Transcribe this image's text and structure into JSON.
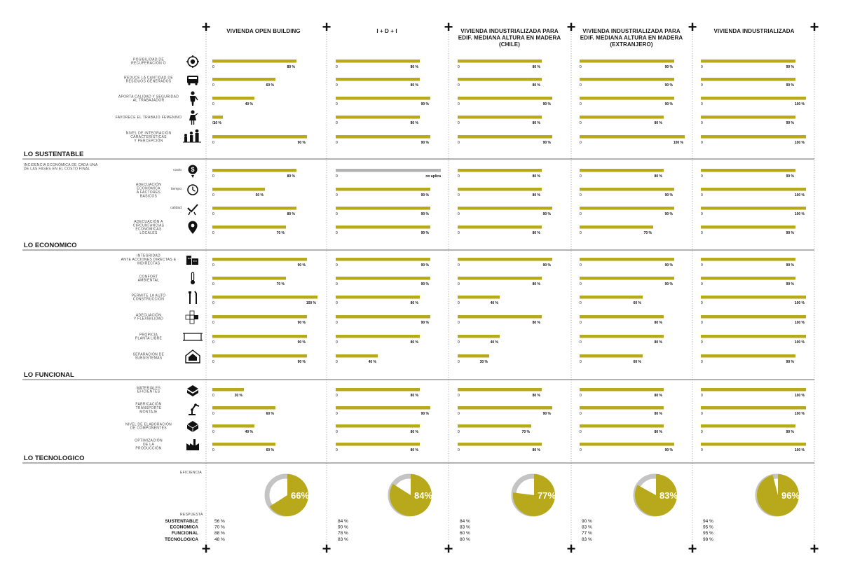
{
  "columns": [
    "VIVIENDA OPEN BUILDING",
    "I + D + I",
    "VIVIENDA INDUSTRIALIZADA PARA\nEDIF. MEDIANA ALTURA EN MADERA\n(CHILE)",
    "VIVIENDA INDUSTRIALIZADA PARA\nEDIF. MEDIANA ALTURA EN MADERA\n(EXTRANJERO)",
    "VIVIENDA INDUSTRIALIZADA"
  ],
  "zero_label": "0",
  "unit": "%",
  "colors": {
    "bar": "#b8a81c",
    "bar_na": "#b3b3b3",
    "donut_rest": "#c4c4c4",
    "rule": "#333333"
  },
  "chart_data": {
    "type": "bar",
    "xlim": [
      0,
      100
    ],
    "sections": [
      {
        "title": "LO SUSTENTABLE",
        "note": "",
        "rows": [
          {
            "label": "POSIBILIDAD DE\nRECUPERACIÓN O",
            "sublabel": "",
            "icon": "target-icon",
            "values": [
              80,
              80,
              80,
              90,
              90
            ]
          },
          {
            "label": "REDUCE LA CANTIDAD DE\nRESIDUOS GENERADOS",
            "sublabel": "",
            "icon": "container-icon",
            "values": [
              60,
              80,
              80,
              90,
              90
            ]
          },
          {
            "label": "APORTA CALIDAD Y SEGURIDAD\nAL TRABAJADOR",
            "sublabel": "",
            "icon": "worker-icon",
            "values": [
              40,
              90,
              90,
              90,
              100
            ]
          },
          {
            "label": "FAVORECE EL TRABAJO FEMENINO",
            "sublabel": "",
            "icon": "woman-worker-icon",
            "values": [
              10,
              80,
              80,
              80,
              90
            ]
          },
          {
            "label": "NIVEL DE INTEGRACIÓN\nCARACTERÍSTICAS\nY PERCEPCIÓN",
            "sublabel": "",
            "icon": "family-icon",
            "values": [
              90,
              90,
              90,
              100,
              100
            ]
          }
        ]
      },
      {
        "title": "LO ECONOMICO",
        "note": "INCIDENCIA ECONÓMICA DE CADA UNA\nDE LAS FASES EN EL COSTO FINAL",
        "group_label": "ADECUACIÓN\nECONÓMICA\nA FACTORES\nBÁSICOS",
        "rows": [
          {
            "label": "",
            "sublabel": "costo",
            "icon": "money-icon",
            "values": [
              80,
              null,
              80,
              80,
              90
            ],
            "na_label": "no aplica"
          },
          {
            "label": "",
            "sublabel": "tiempo",
            "icon": "clock-icon",
            "values": [
              50,
              90,
              80,
              90,
              100
            ]
          },
          {
            "label": "",
            "sublabel": "calidad",
            "icon": "quality-icon",
            "values": [
              80,
              90,
              90,
              90,
              100
            ]
          },
          {
            "label": "ADECUACIÓN A\nCIRCUNTANCIAS\nECONÓMICAS\nLOCALES",
            "sublabel": "",
            "icon": "location-icon",
            "values": [
              70,
              90,
              80,
              70,
              90
            ]
          }
        ]
      },
      {
        "title": "LO FUNCIONAL",
        "note": "",
        "rows": [
          {
            "label": "INTEGRIDAD\nANTE ACCIONES DIRECTAS E\nINDIRECTAS",
            "sublabel": "",
            "icon": "buildings-icon",
            "values": [
              90,
              90,
              90,
              90,
              90
            ]
          },
          {
            "label": "CONFORT\nAMBIENTAL",
            "sublabel": "",
            "icon": "thermometer-icon",
            "values": [
              70,
              90,
              80,
              90,
              90
            ]
          },
          {
            "label": "PERMITE LA AUTO\nCONSTRUCCIÓN",
            "sublabel": "",
            "icon": "tools-icon",
            "values": [
              100,
              80,
              40,
              60,
              100
            ]
          },
          {
            "label": "ADECUACIÓN\nY FLEXIBILIDAD",
            "sublabel": "",
            "icon": "flexibility-icon",
            "values": [
              90,
              90,
              80,
              80,
              100
            ]
          },
          {
            "label": "PROPICIA\nPLANTA LIBRE",
            "sublabel": "",
            "icon": "frame-icon",
            "values": [
              90,
              80,
              40,
              80,
              100
            ]
          },
          {
            "label": "SEPARACIÓN DE\nSUBSISTEMAS",
            "sublabel": "",
            "icon": "house-layers-icon",
            "values": [
              90,
              40,
              30,
              60,
              90
            ]
          }
        ]
      },
      {
        "title": "LO TECNOLOGICO",
        "note": "",
        "rows": [
          {
            "label": "MATERIALES\nEFICIENTES",
            "sublabel": "",
            "icon": "materials-icon",
            "values": [
              30,
              80,
              80,
              80,
              100
            ]
          },
          {
            "label": "FABRICACIÓN\nTRANSPORTE\nMONTAJE",
            "sublabel": "",
            "icon": "robot-arm-icon",
            "values": [
              60,
              90,
              90,
              80,
              100
            ]
          },
          {
            "label": "NIVEL DE ELABORACIÓN\nDE COMPONENTES",
            "sublabel": "",
            "icon": "brick-icon",
            "values": [
              40,
              80,
              70,
              80,
              90
            ]
          },
          {
            "label": "OPTIMIZACIÓN\nDE LA\nPRODUCCIÓN",
            "sublabel": "",
            "icon": "factory-icon",
            "values": [
              60,
              80,
              80,
              90,
              100
            ]
          }
        ]
      }
    ],
    "efficiency": {
      "label": "EFICIENCIA",
      "values": [
        66,
        84,
        77,
        83,
        96
      ]
    },
    "response": {
      "label": "RESPUESTA",
      "categories": [
        "SUSTENTABLE",
        "ECONOMICA",
        "FUNCIONAL",
        "TECNOLOGICA"
      ],
      "values": [
        [
          56,
          70,
          88,
          48
        ],
        [
          84,
          90,
          78,
          83
        ],
        [
          84,
          83,
          60,
          80
        ],
        [
          90,
          83,
          77,
          83
        ],
        [
          94,
          95,
          95,
          98
        ]
      ]
    }
  }
}
